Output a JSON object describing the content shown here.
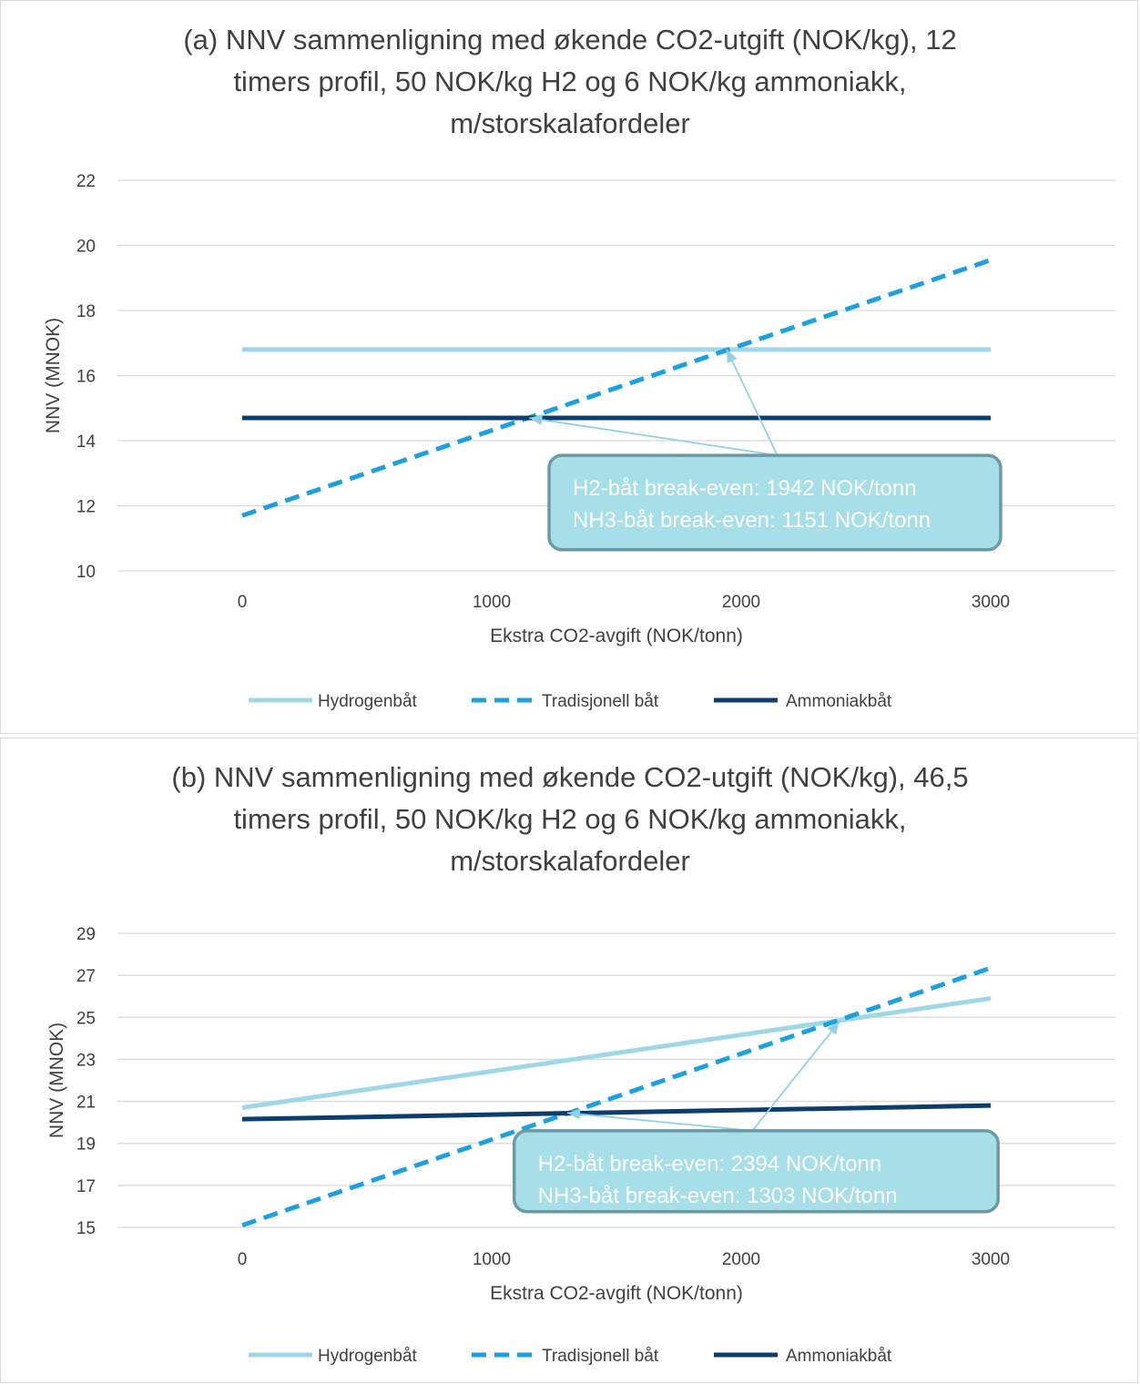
{
  "chart_data": [
    {
      "type": "line",
      "title_lines": [
        "(a) NNV sammenligning med økende CO2-utgift (NOK/kg), 12",
        "timers profil, 50 NOK/kg H2 og 6 NOK/kg ammoniakk,",
        "m/storskalafordeler"
      ],
      "xlabel": "Ekstra CO2-avgift (NOK/tonn)",
      "ylabel": "NNV (MNOK)",
      "x_ticks": [
        0,
        1000,
        2000,
        3000
      ],
      "y_ticks": [
        10,
        12,
        14,
        16,
        18,
        20,
        22
      ],
      "xlim": [
        -500,
        3500
      ],
      "ylim": [
        10,
        22
      ],
      "grid": true,
      "legend_position": "bottom",
      "series": [
        {
          "name": "Hydrogenbåt",
          "color": "#9ed8e6",
          "style": "solid",
          "x": [
            0,
            3000
          ],
          "y": [
            16.8,
            16.8
          ]
        },
        {
          "name": "Tradisjonell båt",
          "color": "#1ba1e2",
          "style": "dashed",
          "x": [
            0,
            3000
          ],
          "y": [
            11.7,
            19.55
          ]
        },
        {
          "name": "Ammoniakbåt",
          "color": "#0b3d6e",
          "style": "solid",
          "x": [
            0,
            3000
          ],
          "y": [
            14.7,
            14.7
          ]
        }
      ],
      "annotation": {
        "lines": [
          "H2-båt break-even: 1942 NOK/tonn",
          "NH3-båt break-even: 1151 NOK/tonn"
        ],
        "targets": [
          {
            "x": 1942,
            "y": 16.8
          },
          {
            "x": 1151,
            "y": 14.7
          }
        ],
        "box_x_range": [
          1230,
          3040
        ],
        "box_y_range": [
          10.65,
          13.55
        ],
        "anchor": {
          "x": 2145,
          "y": 13.55
        },
        "fill": "#a6dfe8",
        "border": "#6b9aa6"
      }
    },
    {
      "type": "line",
      "title_lines": [
        "(b) NNV sammenligning med økende CO2-utgift (NOK/kg), 46,5",
        "timers profil, 50 NOK/kg H2 og 6 NOK/kg ammoniakk,",
        "m/storskalafordeler"
      ],
      "xlabel": "Ekstra CO2-avgift (NOK/tonn)",
      "ylabel": "NNV (MNOK)",
      "x_ticks": [
        0,
        1000,
        2000,
        3000
      ],
      "y_ticks": [
        15,
        17,
        19,
        21,
        23,
        25,
        27,
        29
      ],
      "xlim": [
        -500,
        3500
      ],
      "ylim": [
        15,
        29
      ],
      "grid": true,
      "legend_position": "bottom",
      "series": [
        {
          "name": "Hydrogenbåt",
          "color": "#9ed8e6",
          "style": "solid",
          "x": [
            0,
            3000
          ],
          "y": [
            20.7,
            25.9
          ]
        },
        {
          "name": "Tradisjonell båt",
          "color": "#1ba1e2",
          "style": "dashed",
          "x": [
            0,
            3000
          ],
          "y": [
            15.1,
            27.35
          ]
        },
        {
          "name": "Ammoniakbåt",
          "color": "#0b3d6e",
          "style": "solid",
          "x": [
            0,
            3000
          ],
          "y": [
            20.15,
            20.8
          ]
        }
      ],
      "annotation": {
        "lines": [
          "H2-båt break-even: 2394 NOK/tonn",
          "NH3-båt break-even: 1303 NOK/tonn"
        ],
        "targets": [
          {
            "x": 2394,
            "y": 24.8
          },
          {
            "x": 1303,
            "y": 20.45
          }
        ],
        "box_x_range": [
          1090,
          3030
        ],
        "box_y_range": [
          15.75,
          19.6
        ],
        "anchor": {
          "x": 2045,
          "y": 19.6
        },
        "fill": "#a6dfe8",
        "border": "#6b9aa6"
      }
    }
  ]
}
